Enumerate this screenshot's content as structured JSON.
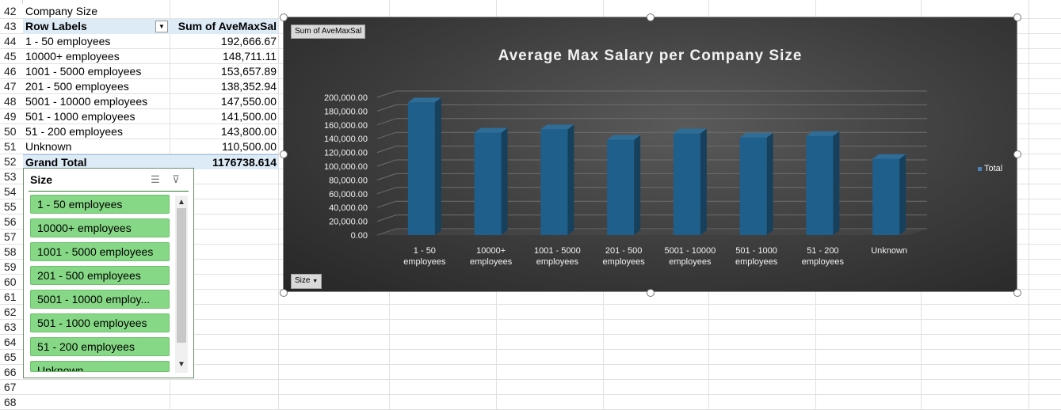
{
  "sheet": {
    "row_numbers": [
      "42",
      "43",
      "44",
      "45",
      "46",
      "47",
      "48",
      "49",
      "50",
      "51",
      "52",
      "53",
      "54",
      "55",
      "56",
      "57",
      "58",
      "59",
      "60",
      "61",
      "62",
      "63",
      "64",
      "65",
      "66",
      "67",
      "68"
    ],
    "a42": "Company Size"
  },
  "pivot": {
    "header_row_labels": "Row Labels",
    "header_value": "Sum of AveMaxSal",
    "rows": [
      {
        "label": "1  -  50 employees",
        "value": "192,666.67"
      },
      {
        "label": "10000+ employees",
        "value": "148,711.11"
      },
      {
        "label": "1001  -  5000 employees",
        "value": "153,657.89"
      },
      {
        "label": "201  -  500 employees",
        "value": "138,352.94"
      },
      {
        "label": "5001  -  10000 employees",
        "value": "147,550.00"
      },
      {
        "label": "501  -  1000 employees",
        "value": "141,500.00"
      },
      {
        "label": "51  -  200 employees",
        "value": "143,800.00"
      },
      {
        "label": "Unknown",
        "value": "110,500.00"
      }
    ],
    "grand_total_label": "Grand Total",
    "grand_total_value": "1176738.614"
  },
  "slicer": {
    "title": "Size",
    "items": [
      "1  -  50 employees",
      "10000+ employees",
      "1001  -  5000 employees",
      "201  -  500 employees",
      "5001  -  10000 employ...",
      "501  -  1000 employees",
      "51  -  200 employees",
      "Unknown"
    ],
    "item_color": "#86d886",
    "icons": [
      "multi-select-icon",
      "clear-filter-icon"
    ]
  },
  "chart_field_buttons": {
    "value_field": "Sum of AveMaxSal",
    "axis_field": "Size"
  },
  "chart_data": {
    "type": "bar",
    "title": "Average Max Salary per Company Size",
    "categories": [
      [
        "1  -  50",
        "employees"
      ],
      [
        "10000+",
        "employees"
      ],
      [
        "1001  -  5000",
        "employees"
      ],
      [
        "201  -  500",
        "employees"
      ],
      [
        "5001  -  10000",
        "employees"
      ],
      [
        "501  -  1000",
        "employees"
      ],
      [
        "51  -  200",
        "employees"
      ],
      [
        "Unknown"
      ]
    ],
    "series": [
      {
        "name": "Total",
        "values": [
          192666.67,
          148711.11,
          153657.89,
          138352.94,
          147550.0,
          141500.0,
          143800.0,
          110500.0
        ]
      }
    ],
    "y_ticks": [
      "0.00",
      "20,000.00",
      "40,000.00",
      "60,000.00",
      "80,000.00",
      "100,000.00",
      "120,000.00",
      "140,000.00",
      "160,000.00",
      "180,000.00",
      "200,000.00"
    ],
    "ylim": [
      0,
      200000
    ],
    "grid": true,
    "legend_position": "right",
    "bar_color": "#1f5f8b",
    "background_color": "#3c3c3c",
    "text_color": "#f2f2f2"
  }
}
